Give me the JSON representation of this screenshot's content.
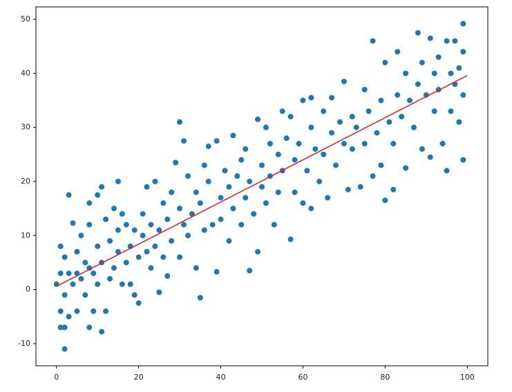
{
  "chart_data": {
    "type": "scatter",
    "xlim": [
      -5,
      105
    ],
    "ylim": [
      -14.1,
      52.3
    ],
    "xticks": [
      0,
      20,
      40,
      60,
      80,
      100
    ],
    "yticks": [
      -10,
      0,
      10,
      20,
      30,
      40,
      50
    ],
    "series": [
      {
        "type": "scatter",
        "color": "#1f77b4",
        "x": [
          0,
          1,
          1,
          1,
          1,
          2,
          2,
          2,
          2,
          3,
          3,
          3,
          4,
          4,
          5,
          5,
          5,
          6,
          6,
          7,
          7,
          8,
          8,
          8,
          8,
          9,
          9,
          10,
          10,
          10,
          11,
          11,
          11,
          12,
          12,
          13,
          13,
          14,
          14,
          15,
          15,
          15,
          16,
          16,
          17,
          17,
          18,
          18,
          19,
          19,
          20,
          20,
          21,
          21,
          22,
          22,
          23,
          23,
          24,
          24,
          25,
          25,
          26,
          26,
          27,
          27,
          28,
          28,
          29,
          30,
          30,
          30,
          31,
          31,
          32,
          32,
          33,
          34,
          34,
          35,
          35,
          36,
          36,
          37,
          37,
          38,
          39,
          39,
          40,
          40,
          41,
          42,
          42,
          43,
          43,
          44,
          45,
          45,
          46,
          46,
          47,
          47,
          48,
          49,
          49,
          50,
          50,
          51,
          51,
          52,
          52,
          53,
          54,
          54,
          55,
          55,
          56,
          57,
          57,
          58,
          58,
          59,
          60,
          60,
          61,
          62,
          62,
          62,
          63,
          64,
          65,
          65,
          66,
          67,
          67,
          68,
          69,
          70,
          70,
          71,
          72,
          72,
          73,
          74,
          75,
          75,
          76,
          77,
          77,
          78,
          79,
          79,
          80,
          80,
          81,
          82,
          82,
          83,
          83,
          84,
          85,
          85,
          86,
          87,
          88,
          88,
          89,
          89,
          90,
          91,
          91,
          92,
          92,
          93,
          93,
          94,
          95,
          95,
          96,
          96,
          97,
          97,
          98,
          98,
          99,
          99,
          99,
          99
        ],
        "y": [
          1,
          8,
          3,
          -4,
          -7,
          -11,
          6,
          -1,
          -7,
          17.5,
          3,
          -5,
          12.3,
          1,
          7,
          -4,
          3,
          10,
          2,
          5,
          -1,
          16,
          12,
          -7,
          4,
          3,
          -4,
          17.5,
          8,
          1,
          19,
          -7.8,
          5,
          13,
          -4,
          9,
          2,
          15,
          4,
          20,
          11,
          7,
          14,
          1,
          12,
          5,
          8,
          1,
          11,
          -1,
          6,
          -2.5,
          10,
          14,
          19,
          7,
          12,
          4,
          20,
          8,
          -0.5,
          11,
          16,
          6,
          13,
          2.5,
          18,
          9,
          23.5,
          31,
          15,
          6,
          27.5,
          12,
          21,
          10,
          14,
          18,
          4,
          -1.5,
          16,
          23,
          11,
          26.5,
          20,
          12,
          27.5,
          3.3,
          17,
          13,
          22,
          9,
          19,
          28.5,
          15,
          21,
          12,
          24,
          26,
          17,
          3.5,
          20,
          14,
          31.5,
          7,
          23,
          19,
          30,
          16,
          27,
          21,
          12,
          25,
          18,
          33,
          22,
          28,
          9.3,
          32,
          24,
          18,
          27,
          35,
          16,
          22,
          35.5,
          30,
          15,
          26,
          20,
          33,
          25,
          17,
          35.5,
          29,
          23,
          31,
          38.5,
          27,
          18.5,
          32,
          26,
          30,
          19,
          37,
          27,
          33,
          46,
          21,
          29,
          35,
          23,
          16.5,
          42,
          31,
          18.5,
          27,
          44,
          36,
          32,
          40,
          22.5,
          35,
          30,
          47.5,
          38,
          26,
          42,
          36,
          24.5,
          46.5,
          40,
          33,
          43,
          37,
          27,
          22,
          46,
          40,
          33,
          46,
          38,
          41,
          31,
          49.2,
          24,
          44,
          36
        ]
      },
      {
        "type": "line",
        "color": "#d62728",
        "x": [
          0,
          100
        ],
        "y": [
          0.6,
          39.6
        ]
      }
    ]
  }
}
